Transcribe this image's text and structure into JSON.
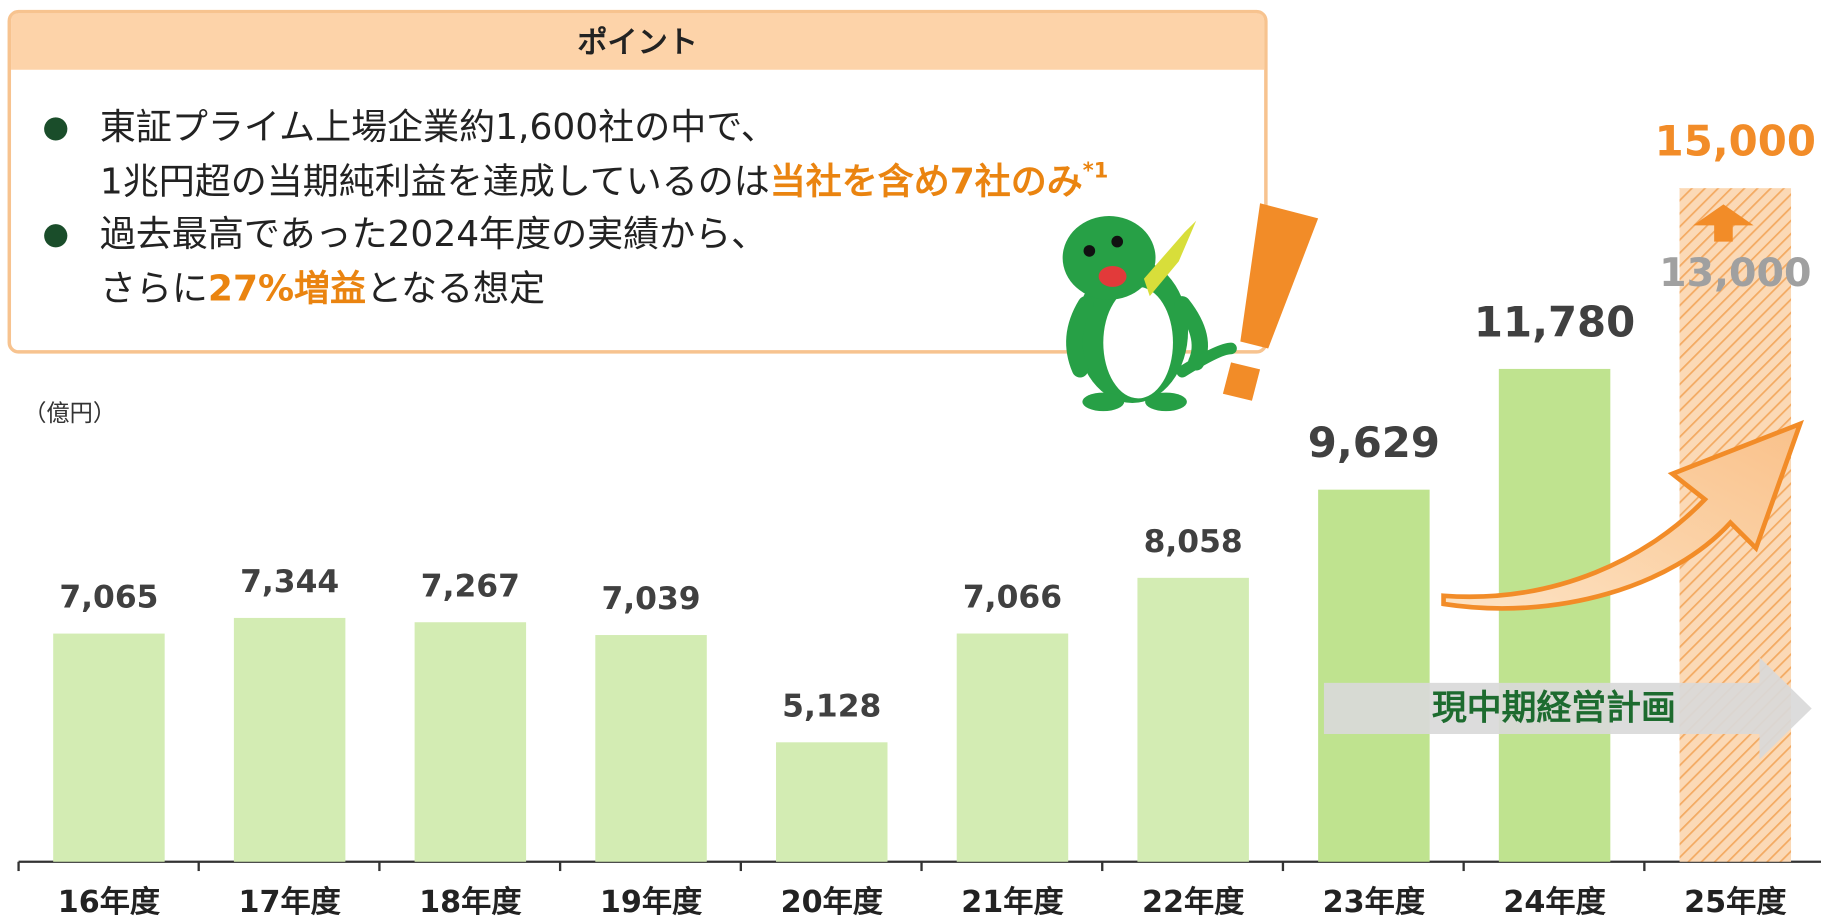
{
  "callout": {
    "title": "ポイント",
    "bullets": [
      [
        [
          {
            "text": "東証プライム上場企業約1,600社の中で、"
          }
        ],
        [
          {
            "text": "1兆円超の当期純利益を達成しているのは"
          },
          {
            "text": "当社を含め7社のみ",
            "style": "highlight"
          },
          {
            "text": "*1",
            "style": "superscript"
          }
        ]
      ],
      [
        [
          {
            "text": "過去最高であった2024年度の実績から、"
          }
        ],
        [
          {
            "text": "さらに"
          },
          {
            "text": "27%増益",
            "style": "highlight"
          },
          {
            "text": "となる想定"
          }
        ]
      ]
    ]
  },
  "chart_data": {
    "type": "bar",
    "unit": "（億円）",
    "categories": [
      "16年度",
      "17年度",
      "18年度",
      "19年度",
      "20年度",
      "21年度",
      "22年度",
      "23年度",
      "24年度",
      "25年度"
    ],
    "values": [
      7065,
      7344,
      7267,
      7039,
      5128,
      7066,
      8058,
      9629,
      11780,
      15000
    ],
    "value_labels": [
      "7,065",
      "7,344",
      "7,267",
      "7,039",
      "5,128",
      "7,066",
      "8,058",
      "9,629",
      "11,780",
      "15,000"
    ],
    "colors": [
      "#d3ecb3",
      "#d3ecb3",
      "#d3ecb3",
      "#d3ecb3",
      "#d3ecb3",
      "#d3ecb3",
      "#d3ecb3",
      "#bfe38f",
      "#bfe38f",
      "#f9c99a"
    ],
    "previous_forecast": 13000,
    "previous_forecast_label": "13,000",
    "plan_label": "現中期経営計画",
    "ylim": [
      3000,
      15000
    ]
  }
}
